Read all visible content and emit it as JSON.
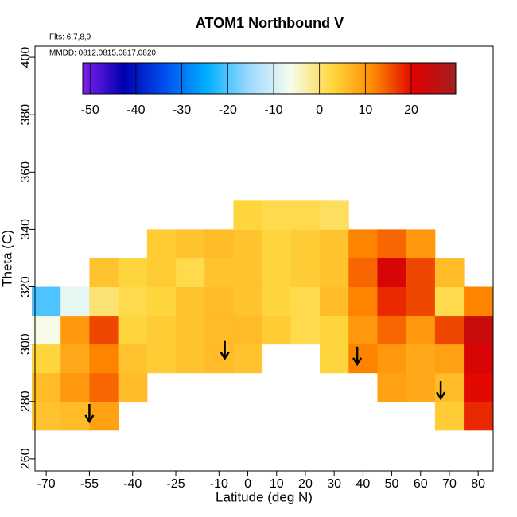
{
  "chart_data": {
    "type": "heatmap",
    "title": "ATOM1 Northbound V",
    "annotations": [
      "Flts: 6,7,8,9",
      "MMDD: 0812,0815,0817,0820"
    ],
    "xlabel": "Latitude (deg N)",
    "ylabel": "Theta (C)",
    "xlim": [
      -73.9,
      85.2
    ],
    "ylim": [
      255.8,
      403.9
    ],
    "xticks": [
      -70,
      -55,
      -40,
      -25,
      -10,
      0,
      10,
      20,
      30,
      40,
      50,
      60,
      70,
      80
    ],
    "yticks": [
      260,
      280,
      300,
      320,
      340,
      360,
      380,
      400
    ],
    "x": [
      -70,
      -60,
      -50,
      -40,
      -30,
      -20,
      -10,
      0,
      10,
      20,
      30,
      40,
      50,
      60,
      70,
      80
    ],
    "y": [
      275,
      285,
      295,
      305,
      315,
      325,
      335,
      345
    ],
    "z": [
      [
        5,
        6,
        9,
        null,
        null,
        null,
        null,
        null,
        null,
        null,
        null,
        null,
        null,
        null,
        4,
        18
      ],
      [
        6,
        10,
        14,
        6,
        null,
        null,
        null,
        null,
        null,
        null,
        null,
        null,
        9,
        8,
        6,
        20
      ],
      [
        3,
        8,
        12,
        5,
        4,
        5,
        6,
        5,
        null,
        null,
        3,
        12,
        10,
        8,
        9,
        22
      ],
      [
        -6,
        10,
        16,
        3,
        4,
        5,
        6,
        6,
        4,
        2,
        3,
        10,
        14,
        10,
        16,
        24
      ],
      [
        -20,
        -8,
        0,
        2,
        3,
        5,
        6,
        5,
        3,
        2,
        6,
        12,
        18,
        16,
        2,
        12
      ],
      [
        null,
        null,
        5,
        3,
        4,
        2,
        5,
        5,
        3,
        4,
        5,
        14,
        22,
        16,
        6,
        null
      ],
      [
        null,
        null,
        null,
        null,
        4,
        5,
        6,
        5,
        3,
        4,
        5,
        12,
        14,
        10,
        null,
        null
      ],
      [
        null,
        null,
        null,
        null,
        null,
        null,
        null,
        3,
        2,
        2,
        1,
        null,
        null,
        null,
        null,
        null
      ]
    ],
    "arrows": {
      "x": [
        -55,
        -8,
        38,
        67
      ],
      "y": [
        273,
        295,
        293,
        281
      ]
    },
    "colorbar": {
      "lim": [
        -51.6,
        29.7
      ],
      "ticks": [
        -50,
        -40,
        -30,
        -20,
        -10,
        0,
        10,
        20
      ],
      "colors": [
        "#8020f0",
        "#0000b0",
        "#0050f0",
        "#00b0ff",
        "#9cd8ff",
        "#f6fcf0",
        "#ffd840",
        "#ff8a00",
        "#e00000",
        "#a02020"
      ]
    }
  }
}
